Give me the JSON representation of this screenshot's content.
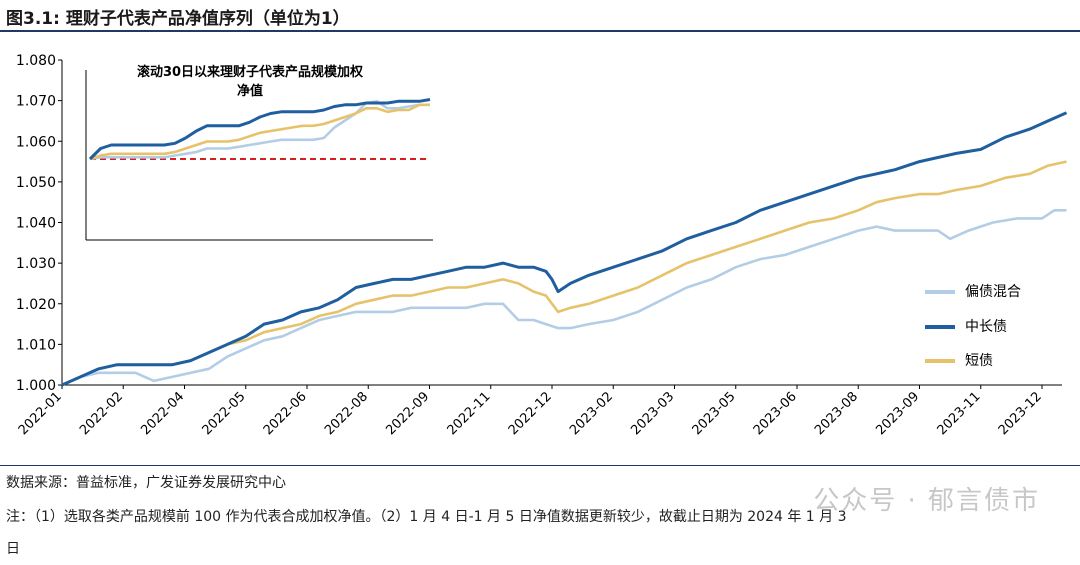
{
  "header": {
    "title": "图3.1:  理财子代表产品净值序列（单位为1）"
  },
  "notes": {
    "source": "数据来源：普益标准，广发证券发展研究中心",
    "note_line1": "注：（1）选取各类产品规模前 100 作为代表合成加权净值。（2）1 月 4 日-1 月 5 日净值数据更新较少，故截止日期为 2024 年 1 月 3",
    "note_line2": "日"
  },
  "watermark": "公众号 · 郁言债市",
  "colors": {
    "hybrid": "#b4cde6",
    "long": "#1f5f9f",
    "short": "#e6c36a",
    "ref": "#d62020",
    "rule": "#1f3864"
  },
  "chart_data": [
    {
      "type": "line",
      "title": "",
      "ylim": [
        1.0,
        1.08
      ],
      "yticks": [
        "1.000",
        "1.010",
        "1.020",
        "1.030",
        "1.040",
        "1.050",
        "1.060",
        "1.070",
        "1.080"
      ],
      "xticks": [
        "2022-01",
        "2022-02",
        "2022-04",
        "2022-05",
        "2022-06",
        "2022-08",
        "2022-09",
        "2022-11",
        "2022-12",
        "2023-02",
        "2023-03",
        "2023-05",
        "2023-06",
        "2023-08",
        "2023-09",
        "2023-11",
        "2023-12"
      ],
      "legend_position": "right",
      "series": [
        {
          "name": "偏债混合",
          "color": "#b4cde6",
          "points": [
            [
              0,
              1.0
            ],
            [
              0.3,
              1.002
            ],
            [
              0.6,
              1.003
            ],
            [
              0.9,
              1.003
            ],
            [
              1.2,
              1.003
            ],
            [
              1.5,
              1.001
            ],
            [
              1.8,
              1.002
            ],
            [
              2.1,
              1.003
            ],
            [
              2.4,
              1.004
            ],
            [
              2.7,
              1.007
            ],
            [
              3.0,
              1.009
            ],
            [
              3.3,
              1.011
            ],
            [
              3.6,
              1.012
            ],
            [
              3.9,
              1.014
            ],
            [
              4.2,
              1.016
            ],
            [
              4.5,
              1.017
            ],
            [
              4.8,
              1.018
            ],
            [
              5.1,
              1.018
            ],
            [
              5.4,
              1.018
            ],
            [
              5.7,
              1.019
            ],
            [
              6.0,
              1.019
            ],
            [
              6.3,
              1.019
            ],
            [
              6.6,
              1.019
            ],
            [
              6.9,
              1.02
            ],
            [
              7.2,
              1.02
            ],
            [
              7.45,
              1.016
            ],
            [
              7.7,
              1.016
            ],
            [
              7.9,
              1.015
            ],
            [
              8.1,
              1.014
            ],
            [
              8.3,
              1.014
            ],
            [
              8.6,
              1.015
            ],
            [
              9.0,
              1.016
            ],
            [
              9.4,
              1.018
            ],
            [
              9.8,
              1.021
            ],
            [
              10.2,
              1.024
            ],
            [
              10.6,
              1.026
            ],
            [
              11.0,
              1.029
            ],
            [
              11.4,
              1.031
            ],
            [
              11.8,
              1.032
            ],
            [
              12.2,
              1.034
            ],
            [
              12.6,
              1.036
            ],
            [
              13.0,
              1.038
            ],
            [
              13.3,
              1.039
            ],
            [
              13.6,
              1.038
            ],
            [
              14.0,
              1.038
            ],
            [
              14.3,
              1.038
            ],
            [
              14.5,
              1.036
            ],
            [
              14.8,
              1.038
            ],
            [
              15.2,
              1.04
            ],
            [
              15.6,
              1.041
            ],
            [
              16.0,
              1.041
            ],
            [
              16.2,
              1.043
            ],
            [
              16.4,
              1.043
            ]
          ]
        },
        {
          "name": "中长债",
          "color": "#1f5f9f",
          "points": [
            [
              0,
              1.0
            ],
            [
              0.3,
              1.002
            ],
            [
              0.6,
              1.004
            ],
            [
              0.9,
              1.005
            ],
            [
              1.2,
              1.005
            ],
            [
              1.5,
              1.005
            ],
            [
              1.8,
              1.005
            ],
            [
              2.1,
              1.006
            ],
            [
              2.4,
              1.008
            ],
            [
              2.7,
              1.01
            ],
            [
              3.0,
              1.012
            ],
            [
              3.3,
              1.015
            ],
            [
              3.6,
              1.016
            ],
            [
              3.9,
              1.018
            ],
            [
              4.2,
              1.019
            ],
            [
              4.5,
              1.021
            ],
            [
              4.8,
              1.024
            ],
            [
              5.1,
              1.025
            ],
            [
              5.4,
              1.026
            ],
            [
              5.7,
              1.026
            ],
            [
              6.0,
              1.027
            ],
            [
              6.3,
              1.028
            ],
            [
              6.6,
              1.029
            ],
            [
              6.9,
              1.029
            ],
            [
              7.2,
              1.03
            ],
            [
              7.45,
              1.029
            ],
            [
              7.7,
              1.029
            ],
            [
              7.9,
              1.028
            ],
            [
              8.0,
              1.026
            ],
            [
              8.1,
              1.023
            ],
            [
              8.3,
              1.025
            ],
            [
              8.6,
              1.027
            ],
            [
              9.0,
              1.029
            ],
            [
              9.4,
              1.031
            ],
            [
              9.8,
              1.033
            ],
            [
              10.2,
              1.036
            ],
            [
              10.6,
              1.038
            ],
            [
              11.0,
              1.04
            ],
            [
              11.4,
              1.043
            ],
            [
              11.8,
              1.045
            ],
            [
              12.2,
              1.047
            ],
            [
              12.6,
              1.049
            ],
            [
              13.0,
              1.051
            ],
            [
              13.3,
              1.052
            ],
            [
              13.6,
              1.053
            ],
            [
              14.0,
              1.055
            ],
            [
              14.3,
              1.056
            ],
            [
              14.6,
              1.057
            ],
            [
              15.0,
              1.058
            ],
            [
              15.4,
              1.061
            ],
            [
              15.8,
              1.063
            ],
            [
              16.1,
              1.065
            ],
            [
              16.4,
              1.067
            ]
          ]
        },
        {
          "name": "短债",
          "color": "#e6c36a",
          "points": [
            [
              0,
              1.0
            ],
            [
              0.3,
              1.002
            ],
            [
              0.6,
              1.004
            ],
            [
              0.9,
              1.005
            ],
            [
              1.2,
              1.005
            ],
            [
              1.5,
              1.005
            ],
            [
              1.8,
              1.005
            ],
            [
              2.1,
              1.006
            ],
            [
              2.4,
              1.008
            ],
            [
              2.7,
              1.01
            ],
            [
              3.0,
              1.011
            ],
            [
              3.3,
              1.013
            ],
            [
              3.6,
              1.014
            ],
            [
              3.9,
              1.015
            ],
            [
              4.2,
              1.017
            ],
            [
              4.5,
              1.018
            ],
            [
              4.8,
              1.02
            ],
            [
              5.1,
              1.021
            ],
            [
              5.4,
              1.022
            ],
            [
              5.7,
              1.022
            ],
            [
              6.0,
              1.023
            ],
            [
              6.3,
              1.024
            ],
            [
              6.6,
              1.024
            ],
            [
              6.9,
              1.025
            ],
            [
              7.2,
              1.026
            ],
            [
              7.45,
              1.025
            ],
            [
              7.7,
              1.023
            ],
            [
              7.9,
              1.022
            ],
            [
              8.1,
              1.018
            ],
            [
              8.3,
              1.019
            ],
            [
              8.6,
              1.02
            ],
            [
              9.0,
              1.022
            ],
            [
              9.4,
              1.024
            ],
            [
              9.8,
              1.027
            ],
            [
              10.2,
              1.03
            ],
            [
              10.6,
              1.032
            ],
            [
              11.0,
              1.034
            ],
            [
              11.4,
              1.036
            ],
            [
              11.8,
              1.038
            ],
            [
              12.2,
              1.04
            ],
            [
              12.6,
              1.041
            ],
            [
              13.0,
              1.043
            ],
            [
              13.3,
              1.045
            ],
            [
              13.6,
              1.046
            ],
            [
              14.0,
              1.047
            ],
            [
              14.3,
              1.047
            ],
            [
              14.6,
              1.048
            ],
            [
              15.0,
              1.049
            ],
            [
              15.4,
              1.051
            ],
            [
              15.8,
              1.052
            ],
            [
              16.1,
              1.054
            ],
            [
              16.4,
              1.055
            ]
          ]
        }
      ]
    },
    {
      "type": "line",
      "title": "滚动30日以来理财子代表产品规模加权净值",
      "title_line1": "滚动30日以来理财子代表产品规模加权",
      "title_line2": "净值",
      "reference_line": {
        "style": "dashed",
        "color": "#d62020",
        "level": 0
      },
      "series": [
        {
          "name": "中长债",
          "color": "#1f5f9f",
          "values": [
            0.0,
            0.3,
            0.4,
            0.4,
            0.4,
            0.4,
            0.4,
            0.4,
            0.45,
            0.6,
            0.8,
            0.95,
            0.95,
            0.95,
            0.95,
            1.05,
            1.2,
            1.3,
            1.35,
            1.35,
            1.35,
            1.35,
            1.4,
            1.5,
            1.55,
            1.55,
            1.6,
            1.6,
            1.6,
            1.65,
            1.65,
            1.65,
            1.7
          ]
        },
        {
          "name": "短债",
          "color": "#e6c36a",
          "values": [
            0.0,
            0.1,
            0.15,
            0.15,
            0.15,
            0.15,
            0.15,
            0.15,
            0.2,
            0.3,
            0.4,
            0.5,
            0.5,
            0.5,
            0.55,
            0.65,
            0.75,
            0.8,
            0.85,
            0.9,
            0.95,
            0.95,
            1.0,
            1.1,
            1.2,
            1.3,
            1.45,
            1.45,
            1.35,
            1.4,
            1.4,
            1.55,
            1.55
          ]
        },
        {
          "name": "偏债混合",
          "color": "#b4cde6",
          "values": [
            0.0,
            0.05,
            0.05,
            0.05,
            0.05,
            0.05,
            0.05,
            0.05,
            0.1,
            0.15,
            0.2,
            0.3,
            0.3,
            0.3,
            0.35,
            0.4,
            0.45,
            0.5,
            0.55,
            0.55,
            0.55,
            0.55,
            0.6,
            0.9,
            1.1,
            1.3,
            1.6,
            1.65,
            1.45,
            1.45,
            1.5,
            1.55,
            1.55
          ]
        }
      ]
    }
  ]
}
